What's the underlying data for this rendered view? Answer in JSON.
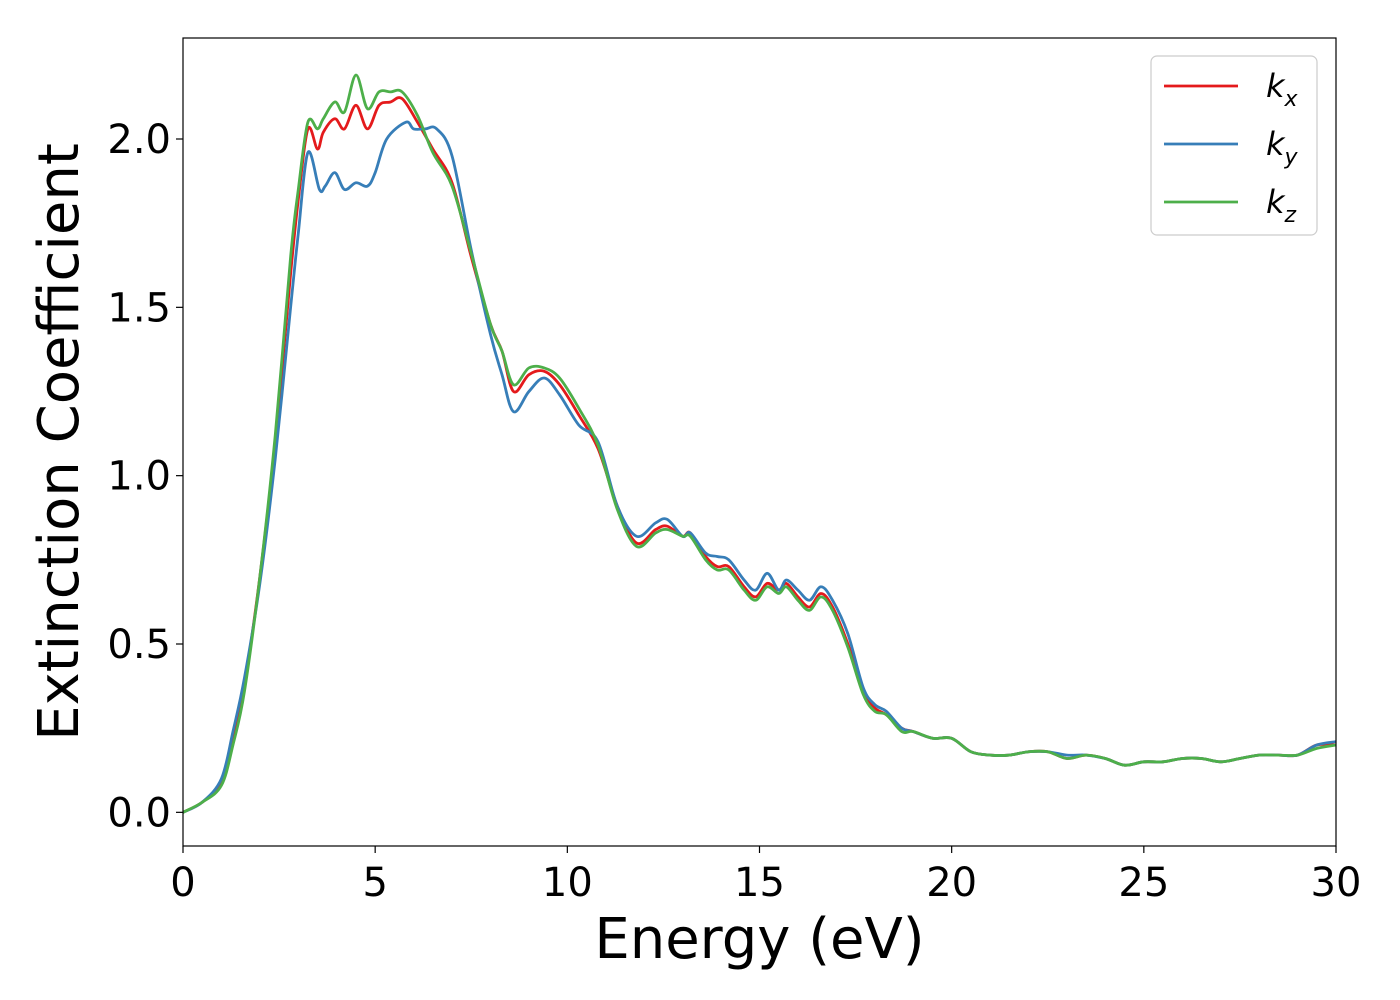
{
  "chart_data": {
    "type": "line",
    "title": "",
    "xlabel": "Energy (eV)",
    "ylabel": "Extinction Coefficient",
    "xlim": [
      0,
      30
    ],
    "ylim": [
      -0.1,
      2.3
    ],
    "xticks": [
      0,
      5,
      10,
      15,
      20,
      25,
      30
    ],
    "xtick_labels": [
      "0",
      "5",
      "10",
      "15",
      "20",
      "25",
      "30"
    ],
    "yticks": [
      0.0,
      0.5,
      1.0,
      1.5,
      2.0
    ],
    "ytick_labels": [
      "0.0",
      "0.5",
      "1.0",
      "1.5",
      "2.0"
    ],
    "grid": false,
    "legend_position": "top-right",
    "series": [
      {
        "name": "k",
        "subscript": "x",
        "color": "#e41a1c",
        "x": [
          0,
          0.5,
          1.0,
          1.3,
          1.6,
          2.0,
          2.4,
          2.8,
          3.0,
          3.25,
          3.5,
          3.65,
          3.95,
          4.2,
          4.5,
          4.8,
          5.1,
          5.4,
          5.7,
          6.1,
          6.5,
          7.0,
          7.5,
          8.0,
          8.3,
          8.6,
          9.0,
          9.4,
          9.8,
          10.3,
          10.8,
          11.3,
          11.8,
          12.3,
          12.6,
          13.0,
          13.2,
          13.6,
          13.9,
          14.2,
          14.6,
          14.9,
          15.2,
          15.5,
          15.7,
          16.0,
          16.3,
          16.6,
          16.9,
          17.3,
          17.7,
          18.0,
          18.3,
          18.7,
          19.0,
          19.5,
          20.0,
          20.5,
          21.0,
          21.5,
          22.0,
          22.5,
          23.0,
          23.5,
          24.0,
          24.5,
          25.0,
          25.5,
          26.0,
          26.5,
          27.0,
          27.5,
          28.0,
          28.5,
          29.0,
          29.5,
          30.0
        ],
        "values": [
          0.0,
          0.03,
          0.09,
          0.22,
          0.38,
          0.7,
          1.1,
          1.6,
          1.82,
          2.03,
          1.97,
          2.02,
          2.06,
          2.03,
          2.1,
          2.03,
          2.1,
          2.11,
          2.12,
          2.05,
          1.97,
          1.87,
          1.65,
          1.45,
          1.37,
          1.25,
          1.3,
          1.31,
          1.27,
          1.18,
          1.08,
          0.91,
          0.8,
          0.84,
          0.85,
          0.82,
          0.83,
          0.76,
          0.73,
          0.73,
          0.67,
          0.64,
          0.68,
          0.66,
          0.68,
          0.64,
          0.61,
          0.65,
          0.61,
          0.5,
          0.36,
          0.31,
          0.29,
          0.25,
          0.24,
          0.22,
          0.22,
          0.18,
          0.17,
          0.17,
          0.18,
          0.18,
          0.16,
          0.17,
          0.16,
          0.14,
          0.15,
          0.15,
          0.16,
          0.16,
          0.15,
          0.16,
          0.17,
          0.17,
          0.17,
          0.2,
          0.2
        ]
      },
      {
        "name": "k",
        "subscript": "y",
        "color": "#377eb8",
        "x": [
          0,
          0.5,
          1.0,
          1.3,
          1.6,
          2.0,
          2.4,
          2.8,
          3.0,
          3.25,
          3.55,
          3.7,
          3.95,
          4.2,
          4.5,
          4.8,
          5.0,
          5.3,
          5.8,
          6.0,
          6.3,
          6.6,
          7.0,
          7.5,
          8.0,
          8.3,
          8.6,
          9.0,
          9.4,
          9.8,
          10.3,
          10.8,
          11.3,
          11.8,
          12.3,
          12.6,
          13.0,
          13.2,
          13.6,
          13.9,
          14.2,
          14.6,
          14.9,
          15.2,
          15.5,
          15.7,
          16.0,
          16.3,
          16.6,
          16.9,
          17.3,
          17.7,
          18.0,
          18.3,
          18.7,
          19.0,
          19.5,
          20.0,
          20.5,
          21.0,
          21.5,
          22.0,
          22.5,
          23.0,
          23.5,
          24.0,
          24.5,
          25.0,
          25.5,
          26.0,
          26.5,
          27.0,
          27.5,
          28.0,
          28.5,
          29.0,
          29.5,
          30.0
        ],
        "values": [
          0.0,
          0.03,
          0.1,
          0.24,
          0.4,
          0.68,
          1.05,
          1.5,
          1.72,
          1.96,
          1.85,
          1.86,
          1.9,
          1.85,
          1.87,
          1.86,
          1.9,
          2.0,
          2.05,
          2.03,
          2.03,
          2.03,
          1.95,
          1.67,
          1.42,
          1.3,
          1.19,
          1.25,
          1.29,
          1.24,
          1.15,
          1.1,
          0.91,
          0.82,
          0.86,
          0.87,
          0.82,
          0.83,
          0.77,
          0.76,
          0.75,
          0.69,
          0.66,
          0.71,
          0.66,
          0.69,
          0.66,
          0.63,
          0.67,
          0.63,
          0.53,
          0.37,
          0.32,
          0.3,
          0.25,
          0.24,
          0.22,
          0.22,
          0.18,
          0.17,
          0.17,
          0.18,
          0.18,
          0.17,
          0.17,
          0.16,
          0.14,
          0.15,
          0.15,
          0.16,
          0.16,
          0.15,
          0.16,
          0.17,
          0.17,
          0.17,
          0.2,
          0.21
        ]
      },
      {
        "name": "k",
        "subscript": "z",
        "color": "#4daf4a",
        "x": [
          0,
          0.5,
          1.0,
          1.3,
          1.6,
          2.0,
          2.4,
          2.8,
          3.0,
          3.25,
          3.5,
          3.65,
          3.95,
          4.2,
          4.5,
          4.8,
          5.1,
          5.4,
          5.7,
          6.1,
          6.5,
          7.0,
          7.5,
          8.0,
          8.3,
          8.6,
          9.0,
          9.4,
          9.8,
          10.3,
          10.8,
          11.3,
          11.8,
          12.3,
          12.6,
          13.0,
          13.2,
          13.6,
          13.9,
          14.2,
          14.6,
          14.9,
          15.2,
          15.5,
          15.7,
          16.0,
          16.3,
          16.6,
          16.9,
          17.3,
          17.7,
          18.0,
          18.3,
          18.7,
          19.0,
          19.5,
          20.0,
          20.5,
          21.0,
          21.5,
          22.0,
          22.5,
          23.0,
          23.5,
          24.0,
          24.5,
          25.0,
          25.5,
          26.0,
          26.5,
          27.0,
          27.5,
          28.0,
          28.5,
          29.0,
          29.5,
          30.0
        ],
        "values": [
          0.0,
          0.03,
          0.08,
          0.2,
          0.36,
          0.7,
          1.12,
          1.65,
          1.85,
          2.05,
          2.03,
          2.06,
          2.11,
          2.08,
          2.19,
          2.09,
          2.14,
          2.14,
          2.14,
          2.07,
          1.96,
          1.86,
          1.66,
          1.45,
          1.37,
          1.27,
          1.32,
          1.32,
          1.29,
          1.2,
          1.09,
          0.9,
          0.79,
          0.83,
          0.84,
          0.82,
          0.82,
          0.75,
          0.72,
          0.72,
          0.66,
          0.63,
          0.67,
          0.65,
          0.67,
          0.63,
          0.6,
          0.64,
          0.6,
          0.49,
          0.35,
          0.3,
          0.29,
          0.24,
          0.24,
          0.22,
          0.22,
          0.18,
          0.17,
          0.17,
          0.18,
          0.18,
          0.16,
          0.17,
          0.16,
          0.14,
          0.15,
          0.15,
          0.16,
          0.16,
          0.15,
          0.16,
          0.17,
          0.17,
          0.17,
          0.19,
          0.2
        ]
      }
    ]
  }
}
